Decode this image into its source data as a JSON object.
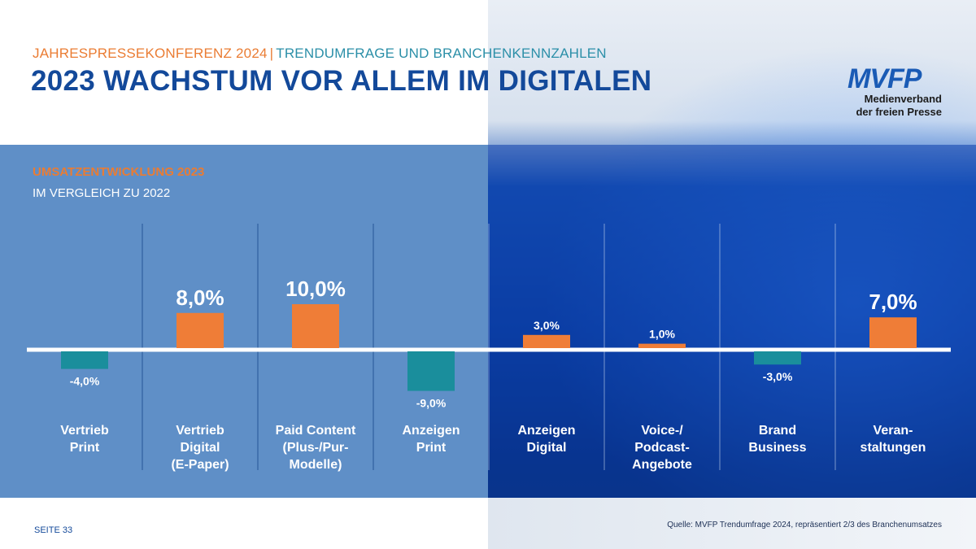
{
  "header": {
    "kicker_left": "JAHRESPRESSEKONFERENZ 2024",
    "separator": "|",
    "kicker_right": "TRENDUMFRAGE UND BRANCHENKENNZAHLEN",
    "title": "2023 WACHSTUM VOR ALLEM IM DIGITALEN"
  },
  "logo": {
    "mark": "MVFP",
    "line1": "Medienverband",
    "line2": "der freien Presse"
  },
  "chart_data": {
    "type": "bar",
    "title": "UMSATZENTWICKLUNG 2023",
    "subtitle": "IM VERGLEICH ZU 2022",
    "unit": "%",
    "categories": [
      [
        "Vertrieb",
        "Print"
      ],
      [
        "Vertrieb",
        "Digital",
        "(E-Paper)"
      ],
      [
        "Paid Content",
        "(Plus-/Pur-",
        "Modelle)"
      ],
      [
        "Anzeigen",
        "Print"
      ],
      [
        "Anzeigen",
        "Digital"
      ],
      [
        "Voice-/",
        "Podcast-",
        "Angebote"
      ],
      [
        "Brand",
        "Business"
      ],
      [
        "Veran-",
        "staltungen"
      ]
    ],
    "values": [
      -4.0,
      8.0,
      10.0,
      -9.0,
      3.0,
      1.0,
      -3.0,
      7.0
    ],
    "value_labels": [
      "-4,0%",
      "8,0%",
      "10,0%",
      "-9,0%",
      "3,0%",
      "1,0%",
      "-3,0%",
      "7,0%"
    ],
    "highlighted": [
      false,
      true,
      true,
      false,
      false,
      false,
      false,
      true
    ],
    "colors": {
      "positive": "#ef7d37",
      "negative": "#1a8e9c"
    }
  },
  "footer": {
    "page": "SEITE 33",
    "source": "Quelle: MVFP Trendumfrage 2024, repräsentiert 2/3 des Branchenumsatzes"
  }
}
